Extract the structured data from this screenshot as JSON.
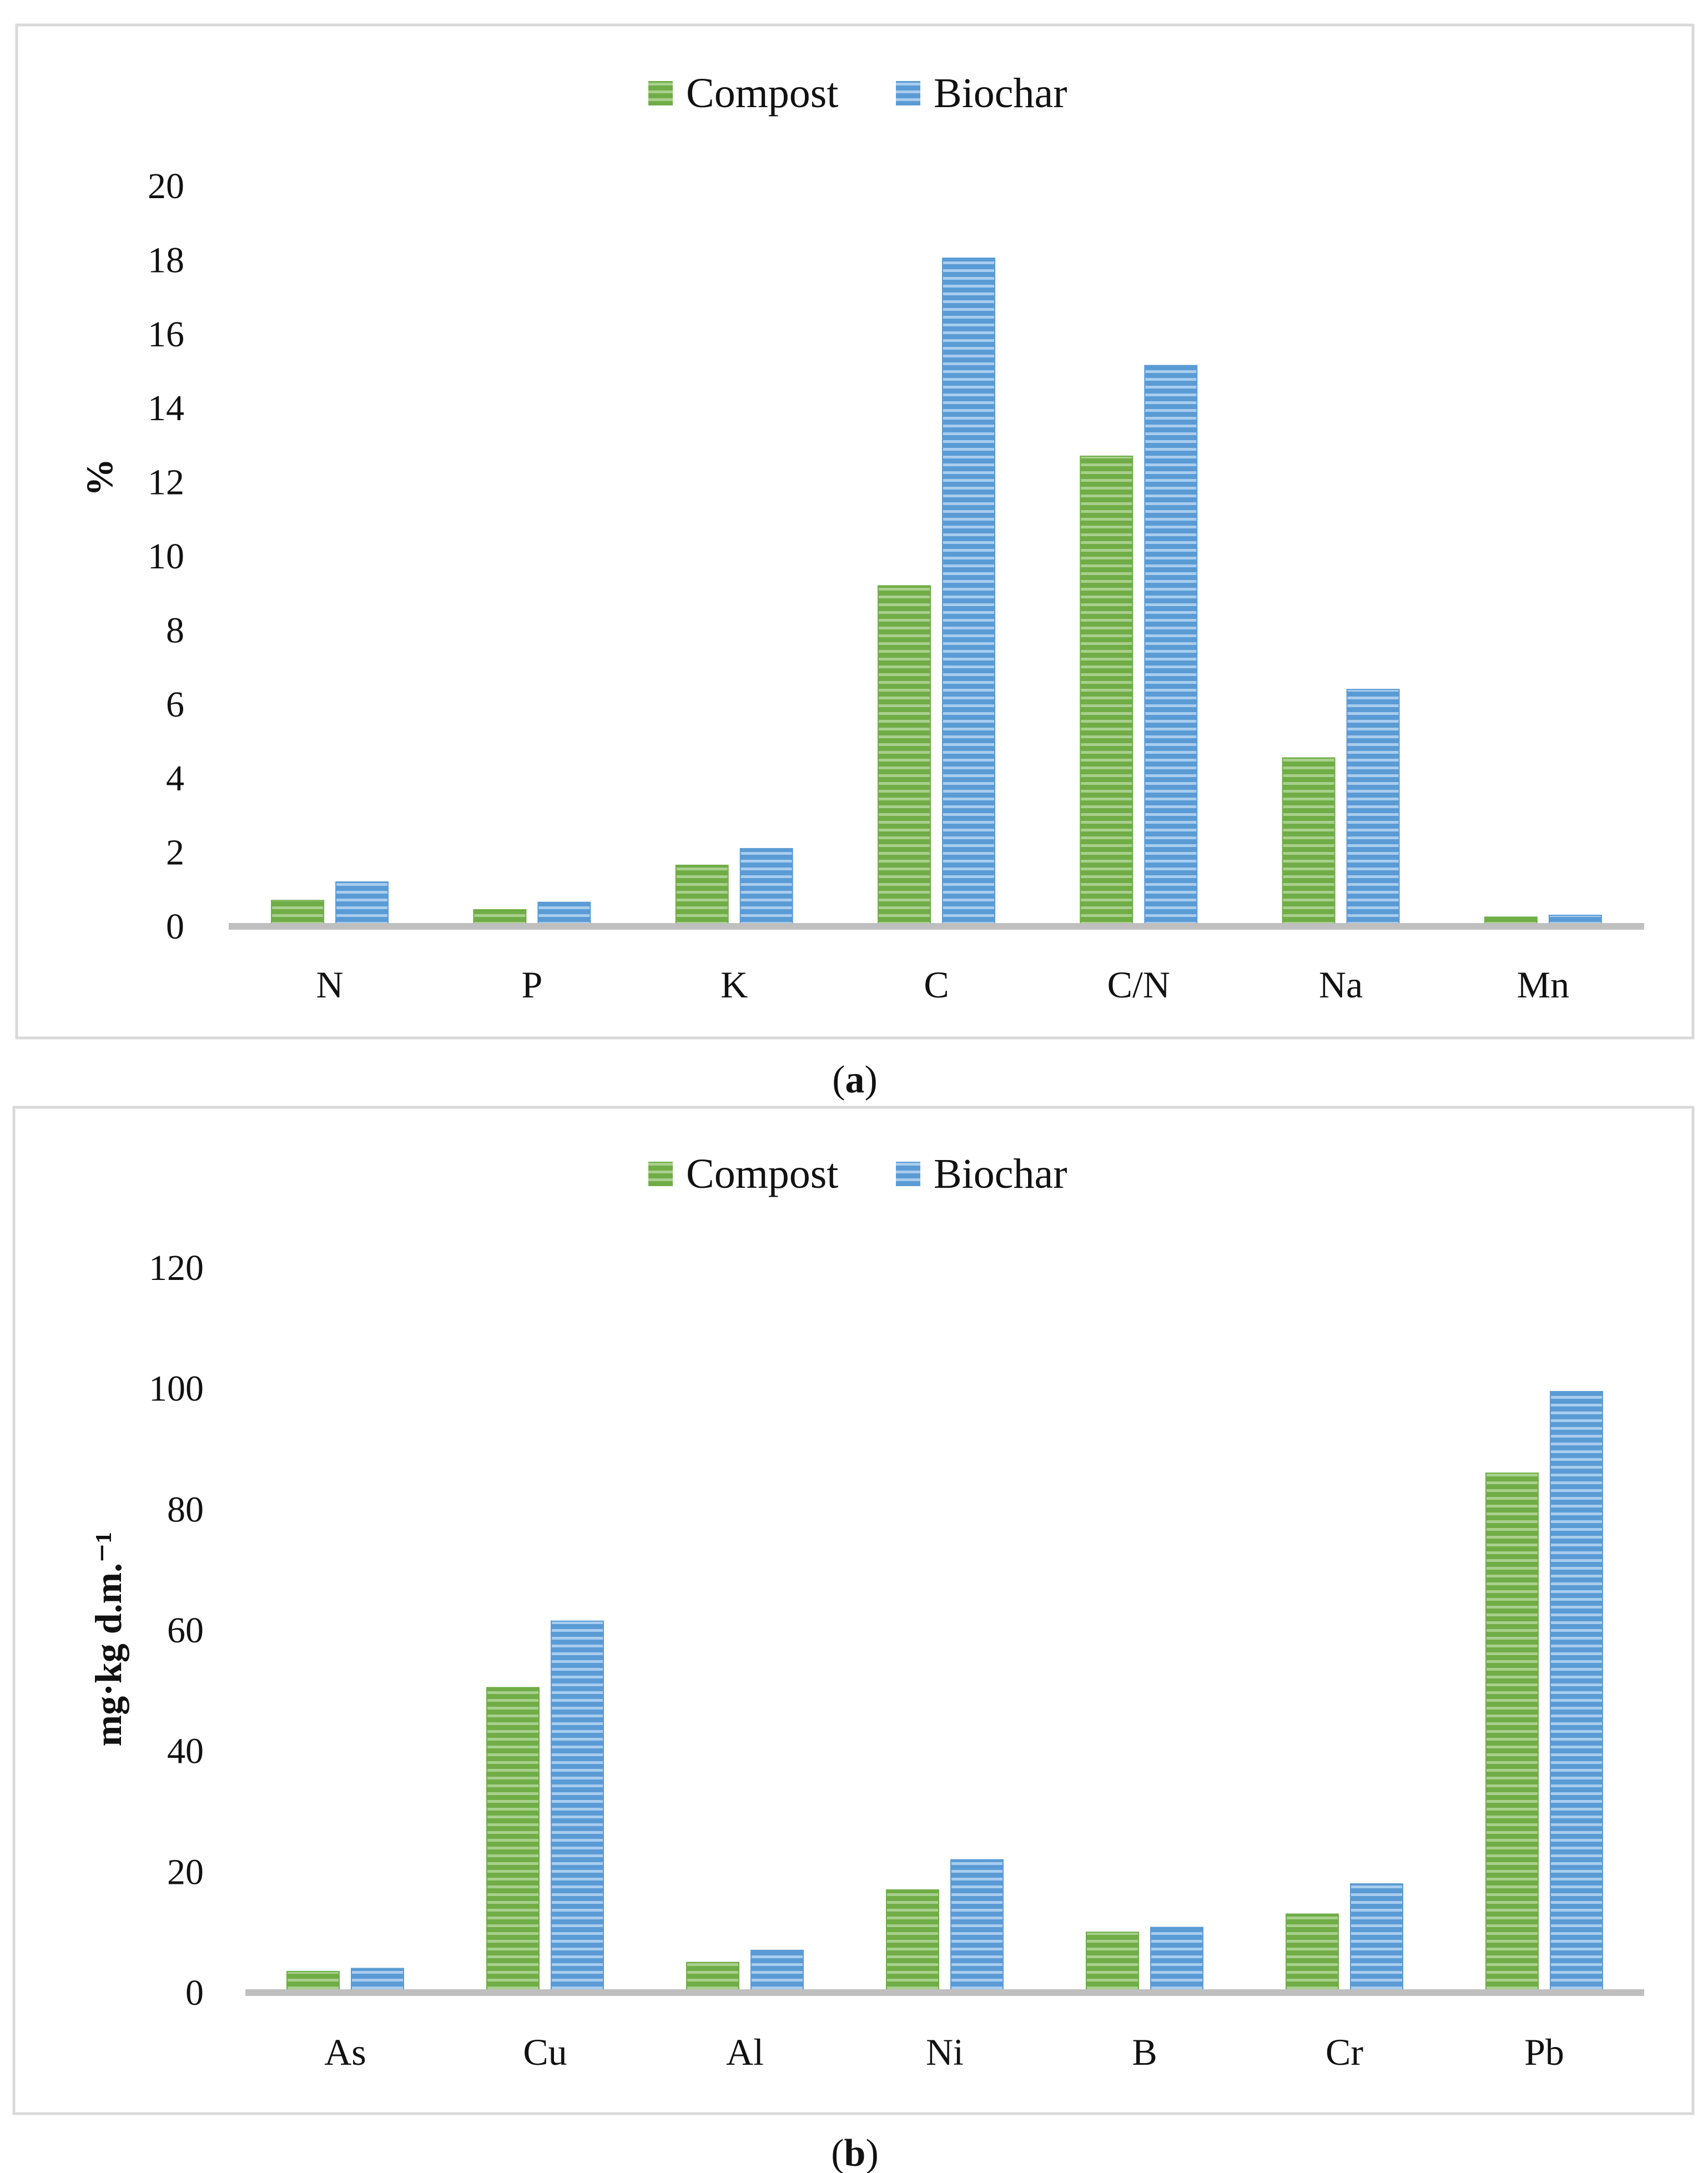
{
  "chart_data": [
    {
      "type": "bar",
      "panel": "a",
      "caption_prefix": "(",
      "caption_letter": "a",
      "caption_suffix": ")",
      "categories": [
        "N",
        "P",
        "K",
        "C",
        "C/N",
        "Na",
        "Mn"
      ],
      "series": [
        {
          "name": "Compost",
          "color": "#70ad47",
          "values": [
            0.7,
            0.45,
            1.65,
            9.2,
            12.7,
            4.55,
            0.25
          ]
        },
        {
          "name": "Biochar",
          "color": "#5b9bd5",
          "values": [
            1.2,
            0.65,
            2.1,
            18.05,
            15.15,
            6.4,
            0.3
          ]
        }
      ],
      "title": "",
      "xlabel": "",
      "ylabel": "%",
      "ylim": [
        0,
        20
      ],
      "yticks": [
        0,
        2,
        4,
        6,
        8,
        10,
        12,
        14,
        16,
        18,
        20
      ],
      "legend": "top-center",
      "grid": false
    },
    {
      "type": "bar",
      "panel": "b",
      "caption_prefix": "(",
      "caption_letter": "b",
      "caption_suffix": ")",
      "categories": [
        "As",
        "Cu",
        "Al",
        "Ni",
        "B",
        "Cr",
        "Pb"
      ],
      "series": [
        {
          "name": "Compost",
          "color": "#70ad47",
          "values": [
            3.5,
            50.5,
            5,
            17,
            10,
            13,
            86
          ]
        },
        {
          "name": "Biochar",
          "color": "#5b9bd5",
          "values": [
            4,
            61.5,
            7,
            22,
            10.8,
            18,
            99.5
          ]
        }
      ],
      "title": "",
      "xlabel": "",
      "ylabel": "mg·kg d.m.⁻¹",
      "ylim": [
        0,
        120
      ],
      "yticks": [
        0,
        20,
        40,
        60,
        80,
        100,
        120
      ],
      "legend": "top-center",
      "grid": false
    }
  ]
}
